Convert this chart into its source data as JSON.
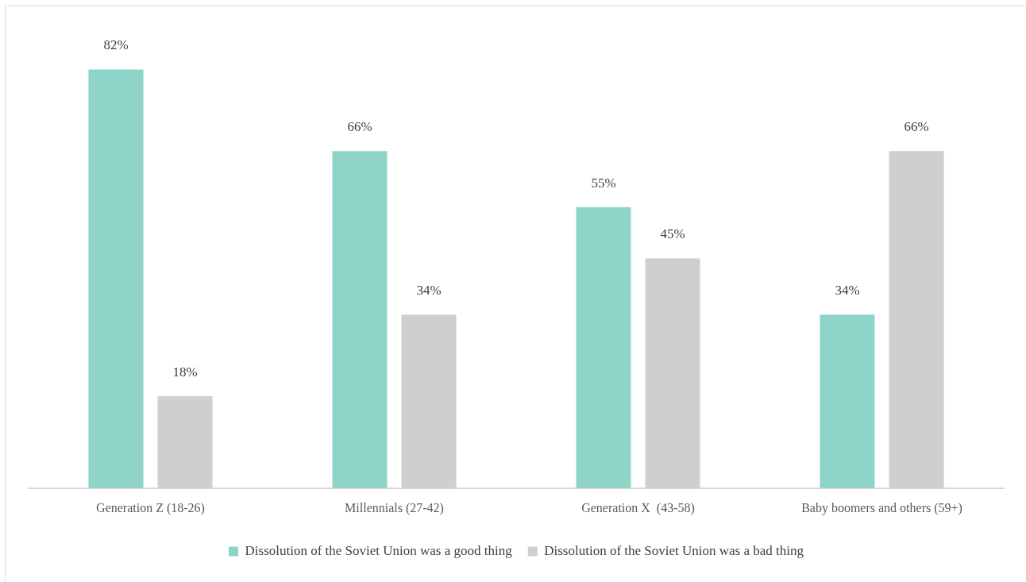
{
  "chart_data": {
    "type": "bar",
    "categories": [
      "Generation Z (18-26)",
      "Millennials (27-42)",
      "Generation X  (43-58)",
      "Baby boomers and others (59+)"
    ],
    "series": [
      {
        "name": "Dissolution of the Soviet Union was a good thing",
        "color": "#8fd4c8",
        "values": [
          82,
          66,
          55,
          34
        ],
        "value_labels": [
          "82%",
          "66%",
          "55%",
          "34%"
        ]
      },
      {
        "name": "Dissolution of the Soviet Union was a bad thing",
        "color": "#d0cecf",
        "values": [
          18,
          34,
          45,
          66
        ],
        "value_labels": [
          "18%",
          "34%",
          "45%",
          "66%"
        ]
      }
    ],
    "legend": "bottom",
    "grid": false,
    "tick_labels": "x"
  }
}
